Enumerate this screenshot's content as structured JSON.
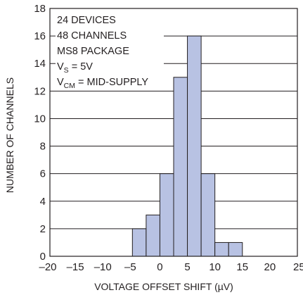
{
  "chart_data": {
    "type": "bar",
    "title": "",
    "xlabel": "VOLTAGE OFFSET SHIFT (µV)",
    "ylabel": "NUMBER OF CHANNELS",
    "xlim": [
      -20,
      25
    ],
    "ylim": [
      0,
      18
    ],
    "xticks": [
      -20,
      -15,
      -10,
      -5,
      0,
      5,
      10,
      15,
      20,
      25
    ],
    "xtick_labels": [
      "–20",
      "–15",
      "–10",
      "–5",
      "0",
      "5",
      "10",
      "15",
      "20",
      "25"
    ],
    "yticks": [
      0,
      2,
      4,
      6,
      8,
      10,
      12,
      14,
      16,
      18
    ],
    "ytick_labels": [
      "0",
      "2",
      "4",
      "6",
      "8",
      "10",
      "12",
      "14",
      "16",
      "18"
    ],
    "bins": [
      {
        "x0": -5.0,
        "x1": -2.5,
        "count": 2
      },
      {
        "x0": -2.5,
        "x1": 0.0,
        "count": 3
      },
      {
        "x0": 0.0,
        "x1": 2.5,
        "count": 6
      },
      {
        "x0": 2.5,
        "x1": 5.0,
        "count": 13
      },
      {
        "x0": 5.0,
        "x1": 7.5,
        "count": 16
      },
      {
        "x0": 7.5,
        "x1": 10.0,
        "count": 6
      },
      {
        "x0": 10.0,
        "x1": 12.5,
        "count": 1
      },
      {
        "x0": 12.5,
        "x1": 15.0,
        "count": 1
      }
    ],
    "grid": "horizontal",
    "bar_color": "#b8c2e3",
    "annotation": {
      "line1": "24 DEVICES",
      "line2": "48 CHANNELS",
      "line3": "MS8 PACKAGE",
      "line4_main": "V",
      "line4_sub": "S",
      "line4_rest": " = 5V",
      "line5_main": "V",
      "line5_sub": "CM",
      "line5_rest": " = MID-SUPPLY"
    }
  }
}
